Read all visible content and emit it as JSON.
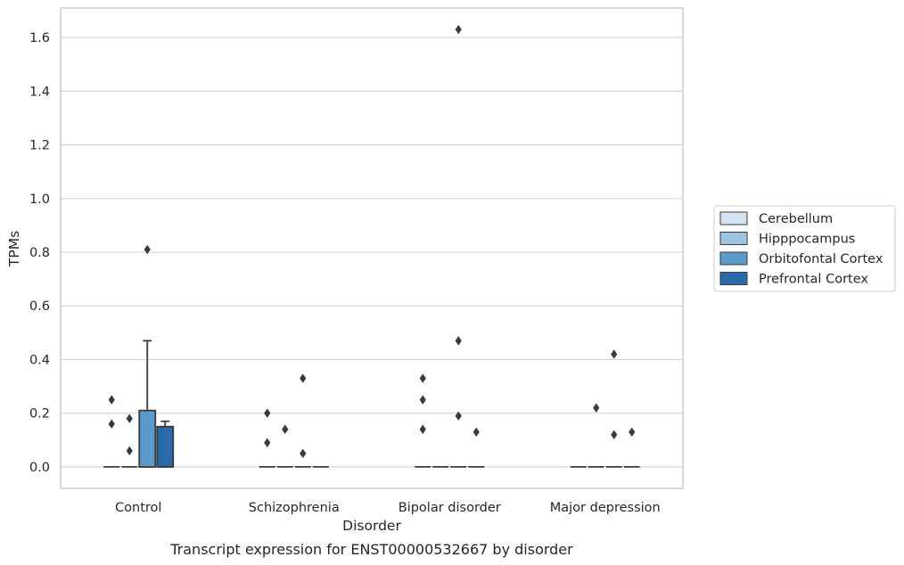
{
  "chart_data": {
    "type": "box",
    "caption": "Transcript expression for ENST00000532667 by disorder",
    "xlabel": "Disorder",
    "ylabel": "TPMs",
    "ylim": [
      -0.08,
      1.71
    ],
    "yticks": [
      "0.0",
      "0.2",
      "0.4",
      "0.6",
      "0.8",
      "1.0",
      "1.2",
      "1.4",
      "1.6"
    ],
    "categories": [
      "Control",
      "Schizophrenia",
      "Bipolar disorder",
      "Major depression"
    ],
    "grid": true,
    "legend": {
      "position": "right",
      "entries": [
        "Cerebellum",
        "Hipppocampus",
        "Orbitofontal Cortex",
        "Prefrontal Cortex"
      ]
    },
    "series": [
      {
        "name": "Cerebellum",
        "color": "#d4e4f2",
        "boxes": [
          {
            "category": "Control",
            "q1": 0.0,
            "median": 0.0,
            "q3": 0.0,
            "whisker_low": 0.0,
            "whisker_high": 0.0,
            "outliers": [
              0.16,
              0.25
            ]
          },
          {
            "category": "Schizophrenia",
            "q1": 0.0,
            "median": 0.0,
            "q3": 0.0,
            "whisker_low": 0.0,
            "whisker_high": 0.0,
            "outliers": [
              0.09,
              0.2
            ]
          },
          {
            "category": "Bipolar disorder",
            "q1": 0.0,
            "median": 0.0,
            "q3": 0.0,
            "whisker_low": 0.0,
            "whisker_high": 0.0,
            "outliers": [
              0.14,
              0.25,
              0.33
            ]
          },
          {
            "category": "Major depression",
            "q1": 0.0,
            "median": 0.0,
            "q3": 0.0,
            "whisker_low": 0.0,
            "whisker_high": 0.0,
            "outliers": []
          }
        ]
      },
      {
        "name": "Hipppocampus",
        "color": "#9dc4e0",
        "boxes": [
          {
            "category": "Control",
            "q1": 0.0,
            "median": 0.0,
            "q3": 0.0,
            "whisker_low": 0.0,
            "whisker_high": 0.0,
            "outliers": [
              0.06,
              0.18
            ]
          },
          {
            "category": "Schizophrenia",
            "q1": 0.0,
            "median": 0.0,
            "q3": 0.0,
            "whisker_low": 0.0,
            "whisker_high": 0.0,
            "outliers": [
              0.14
            ]
          },
          {
            "category": "Bipolar disorder",
            "q1": 0.0,
            "median": 0.0,
            "q3": 0.0,
            "whisker_low": 0.0,
            "whisker_high": 0.0,
            "outliers": []
          },
          {
            "category": "Major depression",
            "q1": 0.0,
            "median": 0.0,
            "q3": 0.0,
            "whisker_low": 0.0,
            "whisker_high": 0.0,
            "outliers": [
              0.22
            ]
          }
        ]
      },
      {
        "name": "Orbitofontal Cortex",
        "color": "#5a9bcb",
        "boxes": [
          {
            "category": "Control",
            "q1": 0.0,
            "median": 0.0,
            "q3": 0.21,
            "whisker_low": 0.0,
            "whisker_high": 0.47,
            "outliers": [
              0.81
            ]
          },
          {
            "category": "Schizophrenia",
            "q1": 0.0,
            "median": 0.0,
            "q3": 0.0,
            "whisker_low": 0.0,
            "whisker_high": 0.0,
            "outliers": [
              0.05,
              0.33
            ]
          },
          {
            "category": "Bipolar disorder",
            "q1": 0.0,
            "median": 0.0,
            "q3": 0.0,
            "whisker_low": 0.0,
            "whisker_high": 0.0,
            "outliers": [
              0.19,
              0.47,
              1.63
            ]
          },
          {
            "category": "Major depression",
            "q1": 0.0,
            "median": 0.0,
            "q3": 0.0,
            "whisker_low": 0.0,
            "whisker_high": 0.0,
            "outliers": [
              0.12,
              0.42
            ]
          }
        ]
      },
      {
        "name": "Prefrontal Cortex",
        "color": "#2a6aa8",
        "boxes": [
          {
            "category": "Control",
            "q1": 0.0,
            "median": 0.0,
            "q3": 0.15,
            "whisker_low": 0.0,
            "whisker_high": 0.17,
            "outliers": []
          },
          {
            "category": "Schizophrenia",
            "q1": 0.0,
            "median": 0.0,
            "q3": 0.0,
            "whisker_low": 0.0,
            "whisker_high": 0.0,
            "outliers": []
          },
          {
            "category": "Bipolar disorder",
            "q1": 0.0,
            "median": 0.0,
            "q3": 0.0,
            "whisker_low": 0.0,
            "whisker_high": 0.0,
            "outliers": [
              0.13
            ]
          },
          {
            "category": "Major depression",
            "q1": 0.0,
            "median": 0.0,
            "q3": 0.0,
            "whisker_low": 0.0,
            "whisker_high": 0.0,
            "outliers": [
              0.13
            ]
          }
        ]
      }
    ]
  }
}
